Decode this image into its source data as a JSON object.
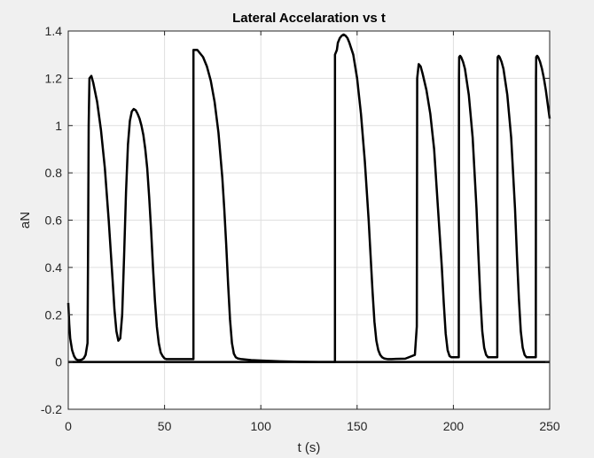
{
  "chart_data": {
    "type": "line",
    "title": "Lateral Accelaration vs t",
    "xlabel": "t (s)",
    "ylabel": "aN",
    "xlim": [
      0,
      250
    ],
    "ylim": [
      -0.2,
      1.4
    ],
    "x_ticks": [
      0,
      50,
      100,
      150,
      200,
      250
    ],
    "x_tick_labels": [
      "0",
      "50",
      "100",
      "150",
      "200",
      "250"
    ],
    "y_ticks": [
      -0.2,
      0,
      0.2,
      0.4,
      0.6,
      0.8,
      1,
      1.2,
      1.4
    ],
    "y_tick_labels": [
      "-0.2",
      "0",
      "0.2",
      "0.4",
      "0.6",
      "0.8",
      "1",
      "1.2",
      "1.4"
    ],
    "grid": true,
    "line_color": "#000000",
    "background": "#ffffff",
    "figure_background": "#f0f0f0",
    "series": [
      {
        "name": "aN",
        "x": [
          0,
          0.5,
          1,
          2,
          3,
          4,
          5,
          6,
          7,
          8,
          9,
          10,
          10.3,
          10.6,
          11,
          12,
          13,
          15,
          17,
          19,
          21,
          23,
          24,
          25,
          26,
          27,
          28,
          29,
          30,
          31,
          32,
          33,
          34,
          35,
          36,
          37,
          38,
          39,
          40,
          41,
          42,
          43,
          44,
          45,
          46,
          47,
          48,
          49,
          50,
          51,
          52,
          53,
          55,
          58,
          61,
          64,
          65,
          65.01,
          66,
          67,
          68,
          70,
          72,
          74,
          76,
          78,
          80,
          81,
          82,
          83,
          84,
          85,
          86,
          87,
          88,
          90,
          95,
          100,
          110,
          120,
          130,
          138.5,
          138.51,
          139.5,
          140,
          141,
          142,
          143,
          144,
          145,
          146,
          148,
          150,
          152,
          154,
          156,
          157,
          158,
          159,
          160,
          161,
          162,
          163,
          164,
          166,
          168,
          170,
          175,
          180,
          181,
          181.2,
          182,
          183,
          184,
          186,
          188,
          190,
          192,
          194,
          195,
          196,
          197,
          198,
          199,
          200,
          201,
          202,
          202.8,
          202.9,
          203,
          203.5,
          204,
          205,
          206,
          208,
          210,
          212,
          213,
          214,
          215,
          216,
          217,
          218,
          219,
          220,
          221,
          222,
          222.8,
          222.9,
          223,
          223.5,
          224,
          225,
          226,
          228,
          230,
          232,
          233,
          234,
          235,
          236,
          237,
          238,
          239,
          240,
          241,
          242,
          242.8,
          242.9,
          243,
          243.5,
          244,
          245,
          246,
          247,
          248,
          249,
          250
        ],
        "y": [
          0.25,
          0.16,
          0.1,
          0.05,
          0.025,
          0.012,
          0.008,
          0.008,
          0.01,
          0.015,
          0.03,
          0.08,
          0.5,
          1.0,
          1.2,
          1.21,
          1.18,
          1.1,
          0.98,
          0.82,
          0.6,
          0.35,
          0.22,
          0.13,
          0.09,
          0.1,
          0.2,
          0.45,
          0.72,
          0.92,
          1.02,
          1.06,
          1.07,
          1.065,
          1.05,
          1.03,
          1.0,
          0.96,
          0.9,
          0.82,
          0.7,
          0.56,
          0.4,
          0.26,
          0.15,
          0.08,
          0.04,
          0.025,
          0.015,
          0.012,
          0.012,
          0.012,
          0.012,
          0.012,
          0.012,
          0.012,
          0.012,
          1.32,
          1.32,
          1.32,
          1.31,
          1.29,
          1.25,
          1.19,
          1.1,
          0.97,
          0.78,
          0.65,
          0.5,
          0.33,
          0.18,
          0.08,
          0.035,
          0.02,
          0.015,
          0.012,
          0.008,
          0.006,
          0.003,
          0.001,
          0.0,
          0.0,
          1.3,
          1.32,
          1.35,
          1.37,
          1.38,
          1.385,
          1.38,
          1.37,
          1.35,
          1.3,
          1.2,
          1.05,
          0.85,
          0.6,
          0.45,
          0.3,
          0.17,
          0.09,
          0.05,
          0.03,
          0.02,
          0.015,
          0.012,
          0.012,
          0.013,
          0.014,
          0.03,
          0.15,
          1.2,
          1.26,
          1.25,
          1.22,
          1.15,
          1.05,
          0.9,
          0.65,
          0.4,
          0.25,
          0.12,
          0.05,
          0.025,
          0.02,
          0.02,
          0.02,
          0.02,
          0.02,
          1.2,
          1.29,
          1.295,
          1.29,
          1.27,
          1.24,
          1.13,
          0.95,
          0.65,
          0.45,
          0.27,
          0.13,
          0.06,
          0.03,
          0.02,
          0.02,
          0.02,
          0.02,
          0.02,
          0.02,
          1.2,
          1.29,
          1.295,
          1.29,
          1.27,
          1.24,
          1.13,
          0.95,
          0.65,
          0.45,
          0.27,
          0.13,
          0.06,
          0.03,
          0.02,
          0.02,
          0.02,
          0.02,
          0.02,
          0.02,
          1.2,
          1.29,
          1.295,
          1.29,
          1.27,
          1.24,
          1.2,
          1.15,
          1.09,
          1.03
        ]
      }
    ]
  }
}
